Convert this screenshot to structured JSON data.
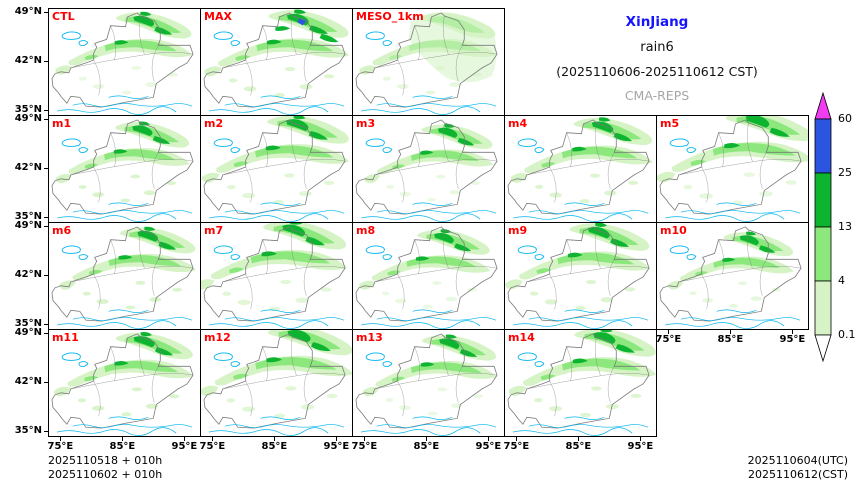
{
  "title": {
    "region": "XinJiang",
    "variable": "rain6",
    "period": "(2025110606-2025110612 CST)",
    "model": "CMA-REPS",
    "region_color": "#1414ff",
    "model_color": "#a6a6a6"
  },
  "panels": [
    {
      "label": "CTL",
      "kind": "ctl",
      "row": 0,
      "col": 0
    },
    {
      "label": "MAX",
      "kind": "max",
      "row": 0,
      "col": 1
    },
    {
      "label": "MESO_1km",
      "kind": "meso",
      "row": 0,
      "col": 2
    },
    {
      "label": "m1",
      "kind": "member",
      "row": 1,
      "col": 0
    },
    {
      "label": "m2",
      "kind": "member",
      "row": 1,
      "col": 1
    },
    {
      "label": "m3",
      "kind": "member",
      "row": 1,
      "col": 2
    },
    {
      "label": "m4",
      "kind": "member",
      "row": 1,
      "col": 3
    },
    {
      "label": "m5",
      "kind": "member",
      "row": 1,
      "col": 4
    },
    {
      "label": "m6",
      "kind": "member",
      "row": 2,
      "col": 0
    },
    {
      "label": "m7",
      "kind": "member",
      "row": 2,
      "col": 1
    },
    {
      "label": "m8",
      "kind": "member",
      "row": 2,
      "col": 2
    },
    {
      "label": "m9",
      "kind": "member",
      "row": 2,
      "col": 3
    },
    {
      "label": "m10",
      "kind": "member",
      "row": 2,
      "col": 4
    },
    {
      "label": "m11",
      "kind": "member",
      "row": 3,
      "col": 0
    },
    {
      "label": "m12",
      "kind": "member",
      "row": 3,
      "col": 1
    },
    {
      "label": "m13",
      "kind": "member",
      "row": 3,
      "col": 2
    },
    {
      "label": "m14",
      "kind": "member",
      "row": 3,
      "col": 3
    }
  ],
  "axes": {
    "lat_ticks": [
      "49°N",
      "42°N",
      "35°N"
    ],
    "lon_ticks": [
      "75°E",
      "85°E",
      "95°E"
    ]
  },
  "colorbar": {
    "levels": [
      "60",
      "25",
      "13",
      "4",
      "0.1"
    ],
    "colors": [
      "#f23cf2",
      "#2b55e0",
      "#0db430",
      "#8ce87c",
      "#d6f3c6",
      "#ffffff"
    ],
    "orientation": "vertical"
  },
  "footer": {
    "left_lines": [
      "2025110518 + 010h",
      "2025110602 + 010h"
    ],
    "right_lines": [
      "2025110604(UTC)",
      "2025110612(CST)"
    ]
  },
  "map_colors": {
    "boundary": "#7a7a7a",
    "water": "#00b4f0",
    "rain_light": "#d6f3c6",
    "rain_mid": "#8ce87c",
    "rain_heavy": "#0db430",
    "rain_very_heavy": "#2b55e0",
    "panel_label_color": "#ff0000"
  },
  "chart_data": {
    "type": "heatmap",
    "subtype": "ensemble-precipitation-map-grid",
    "title": "XinJiang rain6 (2025110606-2025110612 CST)",
    "model": "CMA-REPS",
    "panels": [
      "CTL",
      "MAX",
      "MESO_1km",
      "m1",
      "m2",
      "m3",
      "m4",
      "m5",
      "m6",
      "m7",
      "m8",
      "m9",
      "m10",
      "m11",
      "m12",
      "m13",
      "m14"
    ],
    "x_ticks": [
      "75°E",
      "85°E",
      "95°E"
    ],
    "y_ticks": [
      "49°N",
      "42°N",
      "35°N"
    ],
    "colorbar_levels": [
      0.1,
      4,
      13,
      25,
      60
    ],
    "colorbar_colors_top_to_bottom": [
      "#f23cf2",
      "#2b55e0",
      "#0db430",
      "#8ce87c",
      "#d6f3c6"
    ],
    "legend_position": "right",
    "grid": false,
    "init_times": [
      "2025110518 + 010h",
      "2025110602 + 010h"
    ],
    "valid_times": [
      "2025110604(UTC)",
      "2025110612(CST)"
    ]
  }
}
